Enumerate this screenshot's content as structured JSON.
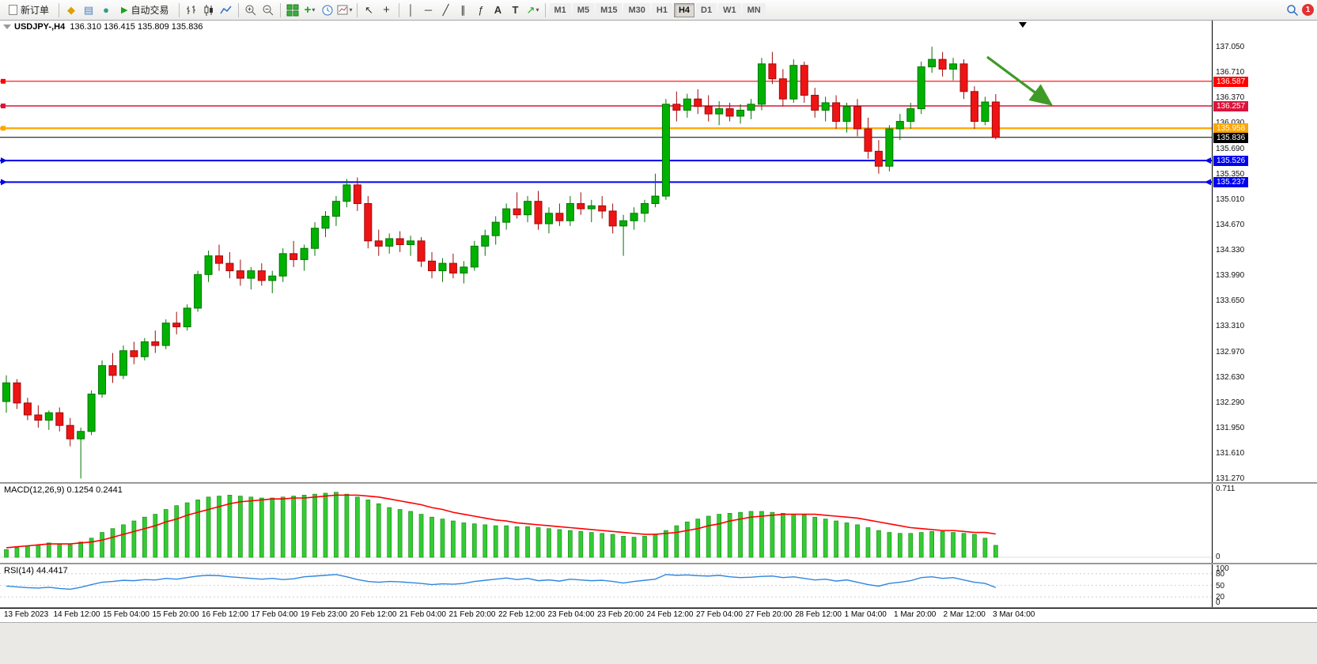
{
  "toolbar": {
    "new_order": "新订单",
    "auto_trading": "自动交易",
    "indicators_plus": "+",
    "text_tool": "A",
    "label_tool": "T",
    "timeframes": [
      "M1",
      "M5",
      "M15",
      "M30",
      "H1",
      "H4",
      "D1",
      "W1",
      "MN"
    ],
    "active_timeframe": "H4",
    "notification_badge": "1"
  },
  "chart": {
    "symbol_title": "USDJPY-,H4",
    "ohlc_quote": "136.310 136.415 135.809 135.836",
    "macd_label": "MACD(12,26,9) 0.1254 0.2441",
    "rsi_label": "RSI(14) 44.4417"
  },
  "chart_data": {
    "type": "candlestick",
    "symbol": "USDJPY",
    "timeframe": "H4",
    "colors": {
      "up": "#00B200",
      "up_border": "#007500",
      "down": "#EE1414",
      "down_border": "#9E0B0B",
      "macd_histogram": "#33CC33",
      "macd_histogram_border": "#1E8F1E",
      "macd_signal": "#FF0000",
      "rsi_line": "#2E86E0",
      "arrow": "#3E9B25",
      "bid": "#000000"
    },
    "price_axis": {
      "view_max": 137.4,
      "view_min": 131.22,
      "step": 0.34,
      "labels": [
        "137.050",
        "136.710",
        "136.370",
        "136.030",
        "135.690",
        "135.350",
        "135.010",
        "134.670",
        "134.330",
        "133.990",
        "133.650",
        "133.310",
        "132.970",
        "132.630",
        "132.290",
        "131.950",
        "131.610",
        "131.270"
      ]
    },
    "levels": [
      {
        "price": 136.587,
        "label": "136.587",
        "color": "#FF0000",
        "width": 1.2,
        "style": "plain"
      },
      {
        "price": 136.257,
        "label": "136.257",
        "color": "#DC143C",
        "width": 1.6,
        "style": "plain"
      },
      {
        "price": 135.958,
        "label": "135.958",
        "color": "#FFA500",
        "width": 2.2,
        "style": "plain"
      },
      {
        "price": 135.526,
        "label": "135.526",
        "color": "#0000EE",
        "width": 2.0,
        "style": "arrow"
      },
      {
        "price": 135.237,
        "label": "135.237",
        "color": "#0000EE",
        "width": 2.0,
        "style": "arrow"
      }
    ],
    "bid": {
      "price": 135.836,
      "label": "135.836"
    },
    "arrow_annotation": {
      "from": [
        1248,
        46
      ],
      "to": [
        1326,
        104
      ]
    },
    "candles": [
      [
        132.3,
        132.65,
        132.15,
        132.55
      ],
      [
        132.55,
        132.6,
        132.2,
        132.28
      ],
      [
        132.28,
        132.35,
        132.05,
        132.12
      ],
      [
        132.12,
        132.25,
        131.95,
        132.05
      ],
      [
        132.05,
        132.18,
        131.92,
        132.15
      ],
      [
        132.15,
        132.22,
        131.9,
        131.98
      ],
      [
        131.98,
        132.08,
        131.7,
        131.8
      ],
      [
        131.8,
        131.95,
        131.27,
        131.9
      ],
      [
        131.9,
        132.45,
        131.85,
        132.4
      ],
      [
        132.4,
        132.85,
        132.35,
        132.78
      ],
      [
        132.78,
        132.95,
        132.55,
        132.65
      ],
      [
        132.65,
        133.05,
        132.6,
        132.98
      ],
      [
        132.98,
        133.1,
        132.8,
        132.9
      ],
      [
        132.9,
        133.15,
        132.85,
        133.1
      ],
      [
        133.1,
        133.25,
        132.95,
        133.05
      ],
      [
        133.05,
        133.4,
        133.0,
        133.35
      ],
      [
        133.35,
        133.5,
        133.2,
        133.3
      ],
      [
        133.3,
        133.6,
        133.25,
        133.55
      ],
      [
        133.55,
        134.05,
        133.5,
        134.0
      ],
      [
        134.0,
        134.32,
        133.9,
        134.25
      ],
      [
        134.25,
        134.4,
        134.05,
        134.15
      ],
      [
        134.15,
        134.3,
        133.95,
        134.05
      ],
      [
        134.05,
        134.2,
        133.85,
        133.95
      ],
      [
        133.95,
        134.1,
        133.8,
        134.05
      ],
      [
        134.05,
        134.15,
        133.85,
        133.92
      ],
      [
        133.92,
        134.05,
        133.75,
        133.98
      ],
      [
        133.98,
        134.35,
        133.9,
        134.28
      ],
      [
        134.28,
        134.45,
        134.1,
        134.2
      ],
      [
        134.2,
        134.4,
        134.05,
        134.35
      ],
      [
        134.35,
        134.7,
        134.25,
        134.62
      ],
      [
        134.62,
        134.85,
        134.5,
        134.78
      ],
      [
        134.78,
        135.05,
        134.65,
        134.98
      ],
      [
        134.98,
        135.28,
        134.9,
        135.2
      ],
      [
        135.2,
        135.3,
        134.85,
        134.95
      ],
      [
        134.95,
        135.05,
        134.35,
        134.45
      ],
      [
        134.45,
        134.6,
        134.25,
        134.38
      ],
      [
        134.38,
        134.55,
        134.28,
        134.48
      ],
      [
        134.48,
        134.58,
        134.3,
        134.4
      ],
      [
        134.4,
        134.52,
        134.25,
        134.45
      ],
      [
        134.45,
        134.5,
        134.1,
        134.18
      ],
      [
        134.18,
        134.3,
        133.95,
        134.05
      ],
      [
        134.05,
        134.22,
        133.9,
        134.15
      ],
      [
        134.15,
        134.28,
        133.95,
        134.02
      ],
      [
        134.02,
        134.18,
        133.88,
        134.1
      ],
      [
        134.1,
        134.45,
        134.05,
        134.38
      ],
      [
        134.38,
        134.6,
        134.25,
        134.52
      ],
      [
        134.52,
        134.78,
        134.4,
        134.7
      ],
      [
        134.7,
        134.95,
        134.6,
        134.88
      ],
      [
        134.88,
        135.1,
        134.75,
        134.8
      ],
      [
        134.8,
        135.05,
        134.7,
        134.98
      ],
      [
        134.98,
        135.12,
        134.6,
        134.68
      ],
      [
        134.68,
        134.9,
        134.55,
        134.82
      ],
      [
        134.82,
        134.95,
        134.65,
        134.72
      ],
      [
        134.72,
        135.05,
        134.65,
        134.95
      ],
      [
        134.95,
        135.1,
        134.8,
        134.88
      ],
      [
        134.88,
        135.0,
        134.7,
        134.92
      ],
      [
        134.92,
        135.05,
        134.75,
        134.85
      ],
      [
        134.85,
        134.95,
        134.55,
        134.65
      ],
      [
        134.65,
        134.8,
        134.25,
        134.72
      ],
      [
        134.72,
        134.9,
        134.6,
        134.82
      ],
      [
        134.82,
        135.0,
        134.7,
        134.95
      ],
      [
        134.95,
        135.35,
        134.9,
        135.05
      ],
      [
        135.05,
        136.35,
        135.0,
        136.28
      ],
      [
        136.28,
        136.45,
        136.05,
        136.2
      ],
      [
        136.2,
        136.42,
        136.1,
        136.35
      ],
      [
        136.35,
        136.48,
        136.15,
        136.25
      ],
      [
        136.25,
        136.4,
        136.05,
        136.15
      ],
      [
        136.15,
        136.32,
        136.0,
        136.22
      ],
      [
        136.22,
        136.3,
        136.05,
        136.12
      ],
      [
        136.12,
        136.28,
        136.02,
        136.2
      ],
      [
        136.2,
        136.35,
        136.08,
        136.28
      ],
      [
        136.28,
        136.9,
        136.2,
        136.82
      ],
      [
        136.82,
        136.98,
        136.55,
        136.62
      ],
      [
        136.62,
        136.75,
        136.25,
        136.35
      ],
      [
        136.35,
        136.88,
        136.3,
        136.8
      ],
      [
        136.8,
        136.85,
        136.3,
        136.4
      ],
      [
        136.4,
        136.5,
        136.1,
        136.2
      ],
      [
        136.2,
        136.38,
        136.05,
        136.3
      ],
      [
        136.3,
        136.4,
        135.95,
        136.05
      ],
      [
        136.05,
        136.3,
        135.9,
        136.25
      ],
      [
        136.25,
        136.35,
        135.85,
        135.95
      ],
      [
        135.95,
        136.1,
        135.55,
        135.65
      ],
      [
        135.65,
        135.8,
        135.35,
        135.45
      ],
      [
        135.45,
        136.0,
        135.38,
        135.95
      ],
      [
        135.95,
        136.15,
        135.8,
        136.05
      ],
      [
        136.05,
        136.3,
        135.95,
        136.22
      ],
      [
        136.22,
        136.85,
        136.15,
        136.78
      ],
      [
        136.78,
        137.05,
        136.7,
        136.88
      ],
      [
        136.88,
        136.98,
        136.65,
        136.75
      ],
      [
        136.75,
        136.9,
        136.6,
        136.82
      ],
      [
        136.82,
        136.88,
        136.35,
        136.45
      ],
      [
        136.45,
        136.52,
        135.95,
        136.05
      ],
      [
        136.05,
        136.38,
        136.0,
        136.31
      ],
      [
        136.31,
        136.415,
        135.809,
        135.836
      ]
    ],
    "macd": {
      "label": "MACD(12,26,9) 0.1254 0.2441",
      "axis_labels": [
        "0.711",
        "0"
      ],
      "max": 0.711,
      "values": [
        0.08,
        0.1,
        0.12,
        0.13,
        0.15,
        0.14,
        0.13,
        0.16,
        0.2,
        0.26,
        0.3,
        0.34,
        0.38,
        0.42,
        0.45,
        0.5,
        0.54,
        0.57,
        0.6,
        0.63,
        0.64,
        0.65,
        0.64,
        0.63,
        0.62,
        0.62,
        0.63,
        0.64,
        0.65,
        0.66,
        0.67,
        0.68,
        0.66,
        0.63,
        0.6,
        0.56,
        0.52,
        0.5,
        0.48,
        0.45,
        0.42,
        0.4,
        0.38,
        0.36,
        0.35,
        0.34,
        0.33,
        0.33,
        0.32,
        0.32,
        0.31,
        0.3,
        0.29,
        0.28,
        0.27,
        0.26,
        0.25,
        0.24,
        0.22,
        0.21,
        0.22,
        0.24,
        0.28,
        0.33,
        0.37,
        0.4,
        0.43,
        0.45,
        0.46,
        0.47,
        0.48,
        0.48,
        0.47,
        0.46,
        0.45,
        0.44,
        0.42,
        0.4,
        0.38,
        0.36,
        0.34,
        0.31,
        0.28,
        0.26,
        0.25,
        0.25,
        0.26,
        0.27,
        0.27,
        0.26,
        0.25,
        0.24,
        0.2,
        0.125
      ],
      "signal": [
        0.1,
        0.11,
        0.12,
        0.13,
        0.14,
        0.14,
        0.14,
        0.15,
        0.16,
        0.18,
        0.21,
        0.24,
        0.27,
        0.3,
        0.33,
        0.37,
        0.4,
        0.44,
        0.47,
        0.5,
        0.53,
        0.56,
        0.58,
        0.59,
        0.6,
        0.61,
        0.61,
        0.62,
        0.62,
        0.63,
        0.64,
        0.65,
        0.65,
        0.65,
        0.64,
        0.63,
        0.61,
        0.59,
        0.57,
        0.55,
        0.52,
        0.5,
        0.47,
        0.45,
        0.43,
        0.41,
        0.39,
        0.38,
        0.36,
        0.35,
        0.34,
        0.33,
        0.32,
        0.31,
        0.3,
        0.29,
        0.28,
        0.27,
        0.26,
        0.25,
        0.24,
        0.24,
        0.25,
        0.26,
        0.28,
        0.3,
        0.33,
        0.35,
        0.38,
        0.4,
        0.42,
        0.43,
        0.44,
        0.45,
        0.45,
        0.45,
        0.45,
        0.44,
        0.43,
        0.42,
        0.41,
        0.39,
        0.37,
        0.35,
        0.33,
        0.31,
        0.3,
        0.29,
        0.28,
        0.28,
        0.27,
        0.26,
        0.26,
        0.244
      ]
    },
    "rsi": {
      "label": "RSI(14) 44.4417",
      "axis_labels": [
        "100",
        "80",
        "50",
        "20",
        "0"
      ],
      "level_values": [
        100,
        80,
        50,
        20,
        0
      ],
      "values": [
        48,
        46,
        44,
        43,
        45,
        42,
        40,
        45,
        52,
        58,
        60,
        63,
        62,
        65,
        64,
        68,
        66,
        70,
        74,
        76,
        75,
        72,
        70,
        68,
        66,
        68,
        65,
        67,
        72,
        74,
        76,
        78,
        72,
        65,
        60,
        58,
        60,
        59,
        57,
        55,
        52,
        54,
        53,
        55,
        60,
        63,
        66,
        69,
        65,
        68,
        62,
        64,
        61,
        66,
        64,
        62,
        63,
        60,
        56,
        60,
        63,
        66,
        78,
        76,
        77,
        75,
        74,
        76,
        72,
        70,
        71,
        73,
        74,
        70,
        72,
        68,
        64,
        66,
        61,
        64,
        58,
        52,
        48,
        55,
        58,
        62,
        70,
        72,
        68,
        70,
        64,
        58,
        55,
        44.4
      ]
    },
    "time_axis": [
      "13 Feb 2023",
      "14 Feb 12:00",
      "15 Feb 04:00",
      "15 Feb 20:00",
      "16 Feb 12:00",
      "17 Feb 04:00",
      "19 Feb 23:00",
      "20 Feb 12:00",
      "21 Feb 04:00",
      "21 Feb 20:00",
      "22 Feb 12:00",
      "23 Feb 04:00",
      "23 Feb 20:00",
      "24 Feb 12:00",
      "27 Feb 04:00",
      "27 Feb 20:00",
      "28 Feb 12:00",
      "1 Mar 04:00",
      "1 Mar 20:00",
      "2 Mar 12:00",
      "3 Mar 04:00"
    ]
  }
}
